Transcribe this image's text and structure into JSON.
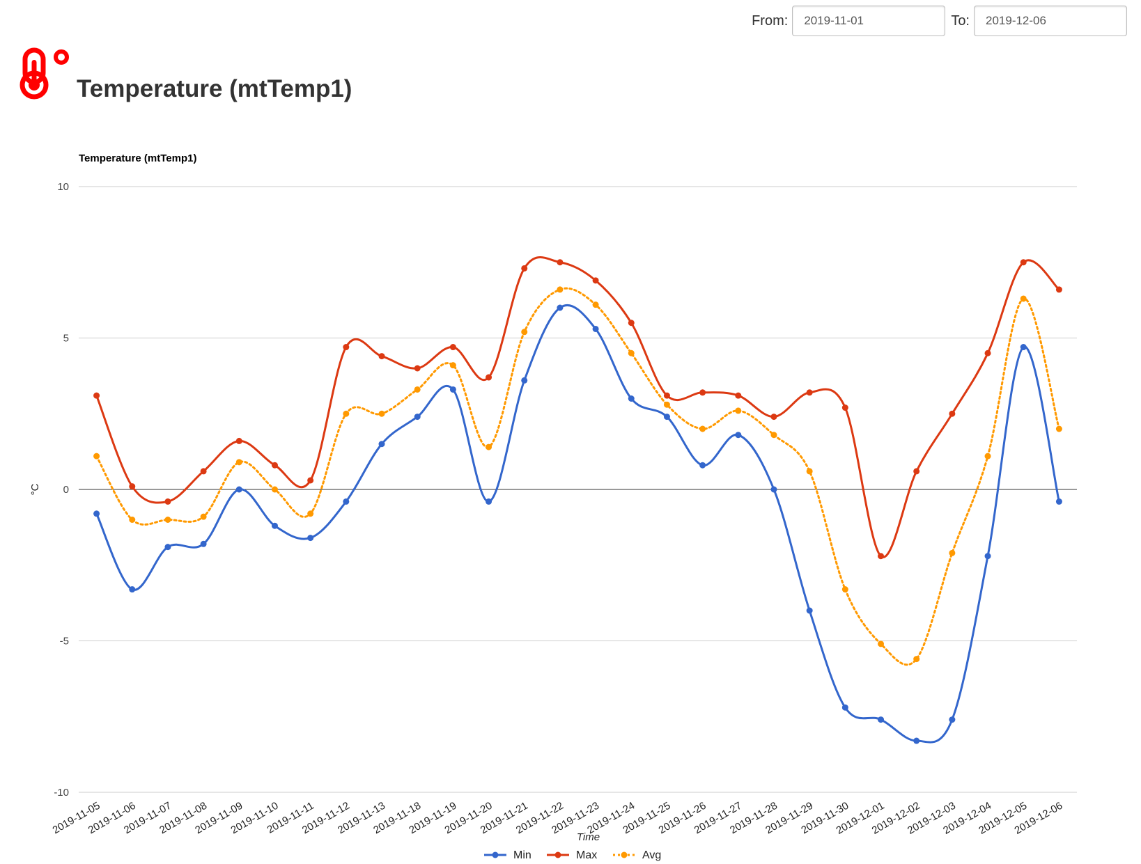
{
  "filters": {
    "from_label": "From:",
    "from_value": "2019-11-01",
    "to_label": "To:",
    "to_value": "2019-12-06"
  },
  "header": {
    "title": "Temperature (mtTemp1)",
    "icon": "thermometer-celsius-icon",
    "icon_color": "#ff0000"
  },
  "chart_data": {
    "type": "line",
    "title": "Temperature (mtTemp1)",
    "xlabel": "Time",
    "ylabel": "°C",
    "ylim": [
      -10,
      10
    ],
    "yticks": [
      "10",
      "5",
      "0",
      "-5",
      "-10"
    ],
    "grid": true,
    "legend": "bottom",
    "categories": [
      "2019-11-05",
      "2019-11-06",
      "2019-11-07",
      "2019-11-08",
      "2019-11-09",
      "2019-11-10",
      "2019-11-11",
      "2019-11-12",
      "2019-11-13",
      "2019-11-18",
      "2019-11-19",
      "2019-11-20",
      "2019-11-21",
      "2019-11-22",
      "2019-11-23",
      "2019-11-24",
      "2019-11-25",
      "2019-11-26",
      "2019-11-27",
      "2019-11-28",
      "2019-11-29",
      "2019-11-30",
      "2019-12-01",
      "2019-12-02",
      "2019-12-03",
      "2019-12-04",
      "2019-12-05",
      "2019-12-06"
    ],
    "series": [
      {
        "name": "Min",
        "color": "#3366cc",
        "dashed": false,
        "values": [
          -0.8,
          -3.3,
          -1.9,
          -1.8,
          0.0,
          -1.2,
          -1.6,
          -0.4,
          1.5,
          2.4,
          3.3,
          -0.4,
          3.6,
          6.0,
          5.3,
          3.0,
          2.4,
          0.8,
          1.8,
          0.0,
          -4.0,
          -7.2,
          -7.6,
          -8.3,
          -7.6,
          -2.2,
          4.7,
          -0.4
        ]
      },
      {
        "name": "Max",
        "color": "#dc3912",
        "dashed": false,
        "values": [
          3.1,
          0.1,
          -0.4,
          0.6,
          1.6,
          0.8,
          0.3,
          4.7,
          4.4,
          4.0,
          4.7,
          3.7,
          7.3,
          7.5,
          6.9,
          5.5,
          3.1,
          3.2,
          3.1,
          2.4,
          3.2,
          2.7,
          -2.2,
          0.6,
          2.5,
          4.5,
          7.5,
          6.6
        ]
      },
      {
        "name": "Avg",
        "color": "#ff9900",
        "dashed": true,
        "values": [
          1.1,
          -1.0,
          -1.0,
          -0.9,
          0.9,
          0.0,
          -0.8,
          2.5,
          2.5,
          3.3,
          4.1,
          1.4,
          5.2,
          6.6,
          6.1,
          4.5,
          2.8,
          2.0,
          2.6,
          1.8,
          0.6,
          -3.3,
          -5.1,
          -5.6,
          -2.1,
          1.1,
          6.3,
          2.0
        ]
      }
    ]
  }
}
